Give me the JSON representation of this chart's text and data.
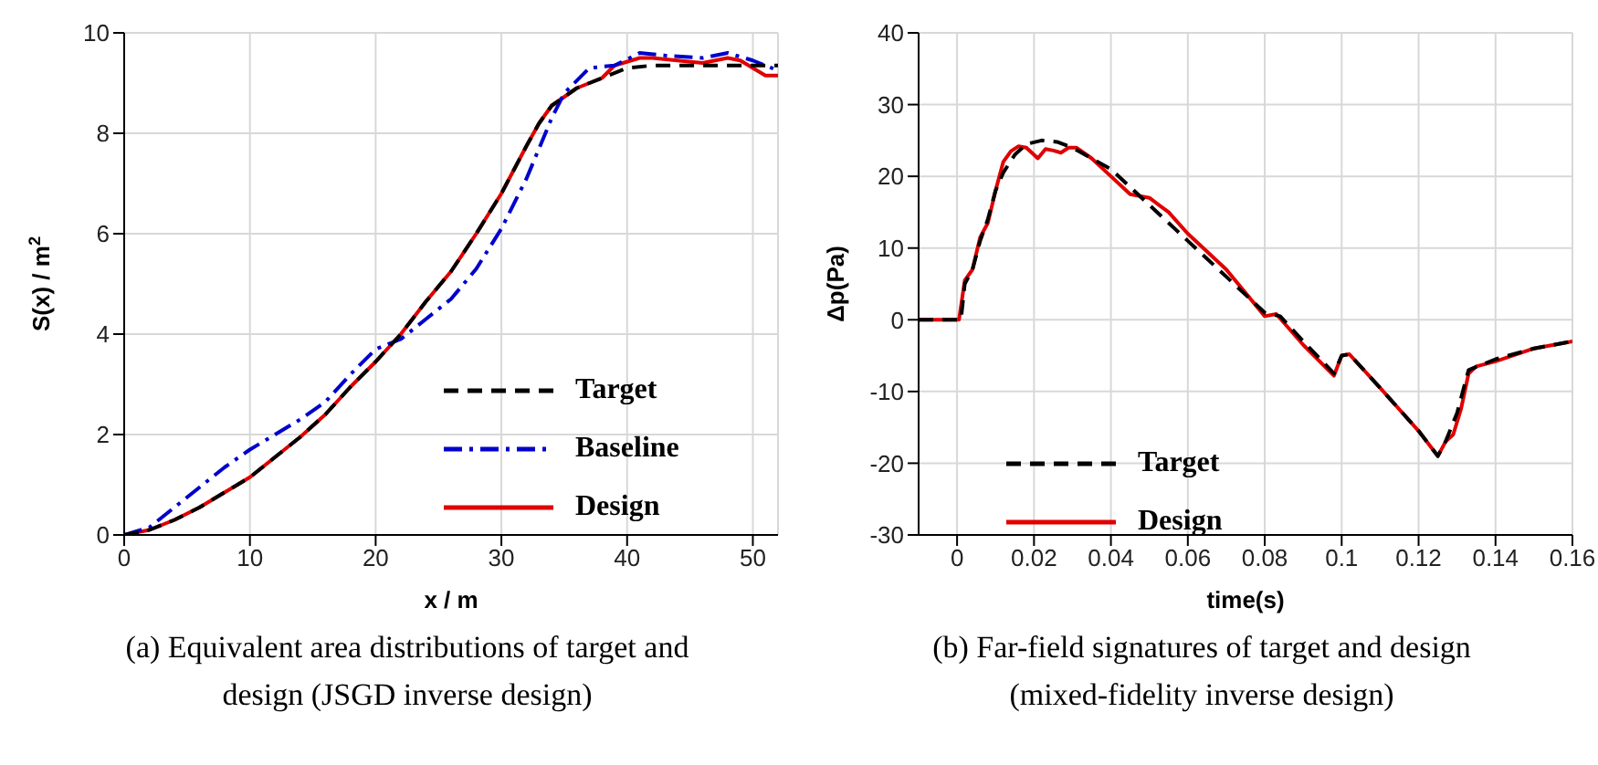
{
  "chart_data": [
    {
      "type": "line",
      "xlabel": "x / m",
      "ylabel": "S(x) / m$^{2}$",
      "xlim": [
        0,
        52
      ],
      "xticks": [
        0,
        10,
        20,
        30,
        40,
        50
      ],
      "ylim": [
        0,
        10
      ],
      "yticks": [
        0,
        2,
        4,
        6,
        8,
        10
      ],
      "grid": true,
      "legend": "bottom right",
      "annotations": [
        "(a) Equivalent area distributions of target and design (JSGD inverse design)"
      ],
      "series": [
        {
          "name": "Target",
          "color": "#000000",
          "line_style": "dashed",
          "x": [
            0,
            2,
            4,
            6,
            8,
            10,
            12,
            14,
            16,
            18,
            20,
            22,
            24,
            26,
            28,
            30,
            32,
            33,
            34,
            36,
            38,
            40,
            42,
            46,
            50,
            52
          ],
          "values": [
            0,
            0.1,
            0.3,
            0.55,
            0.85,
            1.15,
            1.55,
            1.95,
            2.4,
            2.95,
            3.45,
            4.0,
            4.65,
            5.25,
            6.0,
            6.8,
            7.75,
            8.2,
            8.55,
            8.9,
            9.1,
            9.3,
            9.35,
            9.35,
            9.35,
            9.35
          ]
        },
        {
          "name": "Baseline",
          "color": "#0000cc",
          "line_style": "dashdot",
          "x": [
            0,
            2,
            4,
            6,
            8,
            10,
            12,
            14,
            16,
            18,
            20,
            22,
            24,
            26,
            28,
            30,
            32,
            34,
            35,
            37,
            39,
            41,
            43,
            46,
            48,
            50,
            52
          ],
          "values": [
            0,
            0.15,
            0.55,
            0.95,
            1.35,
            1.7,
            2.0,
            2.3,
            2.65,
            3.2,
            3.7,
            3.9,
            4.3,
            4.7,
            5.3,
            6.1,
            7.1,
            8.3,
            8.8,
            9.3,
            9.35,
            9.6,
            9.55,
            9.5,
            9.6,
            9.45,
            9.25
          ]
        },
        {
          "name": "Design",
          "color": "#e00000",
          "line_style": "solid",
          "x": [
            0,
            2,
            4,
            6,
            8,
            10,
            12,
            14,
            16,
            18,
            20,
            22,
            24,
            26,
            28,
            30,
            32,
            33,
            34,
            36,
            38,
            39,
            41,
            42,
            44,
            46,
            48,
            49,
            50,
            51,
            52
          ],
          "values": [
            0,
            0.1,
            0.3,
            0.55,
            0.85,
            1.15,
            1.55,
            1.95,
            2.4,
            2.95,
            3.45,
            4.0,
            4.65,
            5.25,
            6.0,
            6.8,
            7.75,
            8.2,
            8.55,
            8.9,
            9.1,
            9.35,
            9.5,
            9.5,
            9.45,
            9.4,
            9.5,
            9.45,
            9.3,
            9.15,
            9.15
          ]
        }
      ]
    },
    {
      "type": "line",
      "xlabel": "time(s)",
      "ylabel": "Δp(Pa)",
      "xlim": [
        -0.01,
        0.16
      ],
      "xticks": [
        0,
        0.02,
        0.04,
        0.06,
        0.08,
        0.1,
        0.12,
        0.14,
        0.16
      ],
      "ylim": [
        -30,
        40
      ],
      "yticks": [
        -30,
        -20,
        -10,
        0,
        10,
        20,
        30,
        40
      ],
      "grid": true,
      "legend": "bottom left",
      "annotations": [
        "(b) Far-field signatures of target and design (mixed-fidelity inverse design)"
      ],
      "series": [
        {
          "name": "Target",
          "color": "#000000",
          "line_style": "dashed",
          "x": [
            -0.01,
            0,
            0.001,
            0.002,
            0.004,
            0.006,
            0.008,
            0.01,
            0.012,
            0.015,
            0.018,
            0.022,
            0.026,
            0.03,
            0.035,
            0.04,
            0.045,
            0.05,
            0.06,
            0.07,
            0.08,
            0.084,
            0.09,
            0.098,
            0.1,
            0.102,
            0.11,
            0.12,
            0.125,
            0.127,
            0.13,
            0.133,
            0.14,
            0.15,
            0.16
          ],
          "values": [
            0,
            0,
            0,
            5,
            7,
            11,
            14,
            18,
            20.5,
            23,
            24.5,
            25,
            24.8,
            24,
            22.5,
            21,
            18.5,
            16,
            11,
            6,
            1,
            0.5,
            -3,
            -7.5,
            -5,
            -4.8,
            -9.5,
            -15.5,
            -19,
            -17,
            -13,
            -7,
            -5.5,
            -4,
            -3
          ]
        },
        {
          "name": "Design",
          "color": "#e00000",
          "line_style": "solid",
          "x": [
            -0.01,
            0.0005,
            0.002,
            0.004,
            0.006,
            0.008,
            0.01,
            0.012,
            0.014,
            0.016,
            0.018,
            0.02,
            0.021,
            0.023,
            0.025,
            0.027,
            0.029,
            0.031,
            0.035,
            0.04,
            0.045,
            0.05,
            0.055,
            0.06,
            0.07,
            0.08,
            0.083,
            0.09,
            0.098,
            0.1,
            0.102,
            0.11,
            0.12,
            0.125,
            0.127,
            0.129,
            0.131,
            0.133,
            0.135,
            0.14,
            0.15,
            0.16
          ],
          "values": [
            0,
            0,
            5.5,
            7,
            11.5,
            13.5,
            18,
            22,
            23.5,
            24.2,
            24,
            23,
            22.5,
            23.8,
            23.6,
            23.3,
            24,
            24,
            22.5,
            20,
            17.5,
            17,
            15,
            12,
            7,
            0.5,
            0.8,
            -3.5,
            -7.8,
            -5,
            -4.8,
            -9.5,
            -15.5,
            -19,
            -17,
            -16,
            -12.5,
            -7.5,
            -6.5,
            -5.8,
            -4,
            -3
          ]
        }
      ]
    }
  ]
}
